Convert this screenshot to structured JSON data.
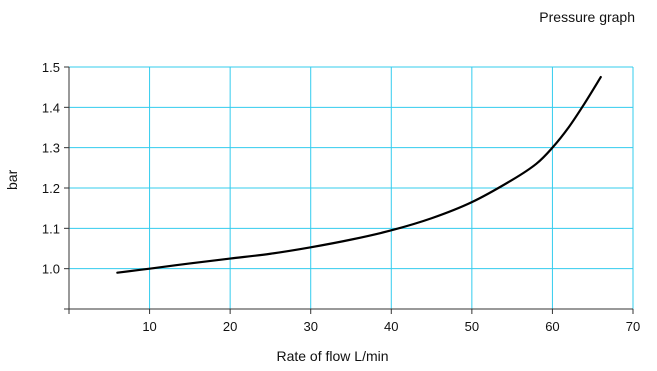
{
  "chart_data": {
    "type": "line",
    "title": "Pressure graph",
    "xlabel": "Rate of flow L/min",
    "ylabel": "bar",
    "xlim": [
      0,
      70
    ],
    "ylim": [
      0.9,
      1.5
    ],
    "x_ticks": [
      10,
      20,
      30,
      40,
      50,
      60,
      70
    ],
    "y_ticks": [
      1.0,
      1.1,
      1.2,
      1.3,
      1.4,
      1.5
    ],
    "y_tick_labels": [
      "1.0",
      "1.1",
      "1.2",
      "1.3",
      "1.4",
      "1.5"
    ],
    "grid": true,
    "grid_color": "#33ccee",
    "line_color": "#000000",
    "series": [
      {
        "x": [
          6,
          10,
          15,
          20,
          25,
          30,
          35,
          40,
          45,
          50,
          55,
          58,
          60,
          62,
          64,
          66
        ],
        "y": [
          0.99,
          1.0,
          1.013,
          1.025,
          1.037,
          1.053,
          1.072,
          1.095,
          1.125,
          1.165,
          1.22,
          1.26,
          1.3,
          1.35,
          1.41,
          1.475
        ]
      }
    ]
  }
}
